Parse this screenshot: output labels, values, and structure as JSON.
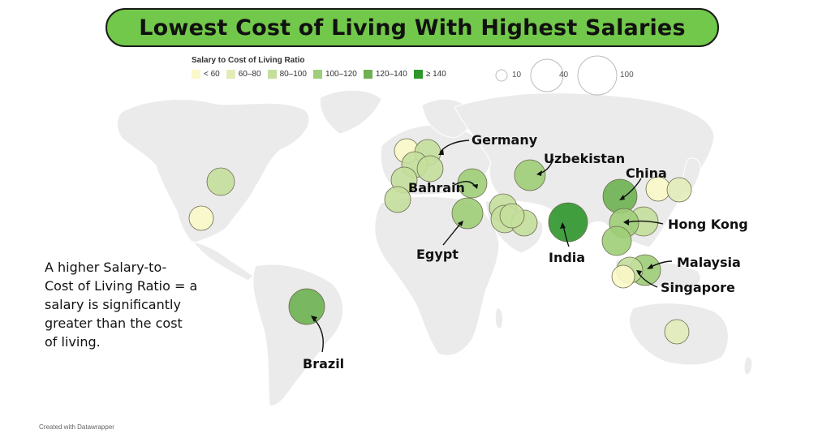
{
  "title": "Lowest Cost of Living With Highest Salaries",
  "legend": {
    "title": "Salary to Cost of Living Ratio",
    "color_bins": [
      {
        "label": "< 60",
        "color": "#fbf8c9"
      },
      {
        "label": "60–80",
        "color": "#e2ecb9"
      },
      {
        "label": "80–100",
        "color": "#c4df9c"
      },
      {
        "label": "100–120",
        "color": "#9fce78"
      },
      {
        "label": "120–140",
        "color": "#6db152"
      },
      {
        "label": "≥ 140",
        "color": "#2d962c"
      }
    ],
    "size_bins": [
      {
        "label": "10",
        "value": 10
      },
      {
        "label": "40",
        "value": 40
      },
      {
        "label": "100",
        "value": 100
      }
    ]
  },
  "annotation": {
    "line1": "A higher Salary-to-",
    "line2": "Cost of Living Ratio = a",
    "line3": "salary is significantly",
    "line4": "greater than the cost",
    "line5": "of living."
  },
  "labels": {
    "germany": "Germany",
    "uzbekistan": "Uzbekistan",
    "china": "China",
    "bahrain": "Bahrain",
    "hong_kong": "Hong Kong",
    "egypt": "Egypt",
    "india": "India",
    "malaysia": "Malaysia",
    "singapore": "Singapore",
    "brazil": "Brazil"
  },
  "footer": "Created with Datawrapper"
}
